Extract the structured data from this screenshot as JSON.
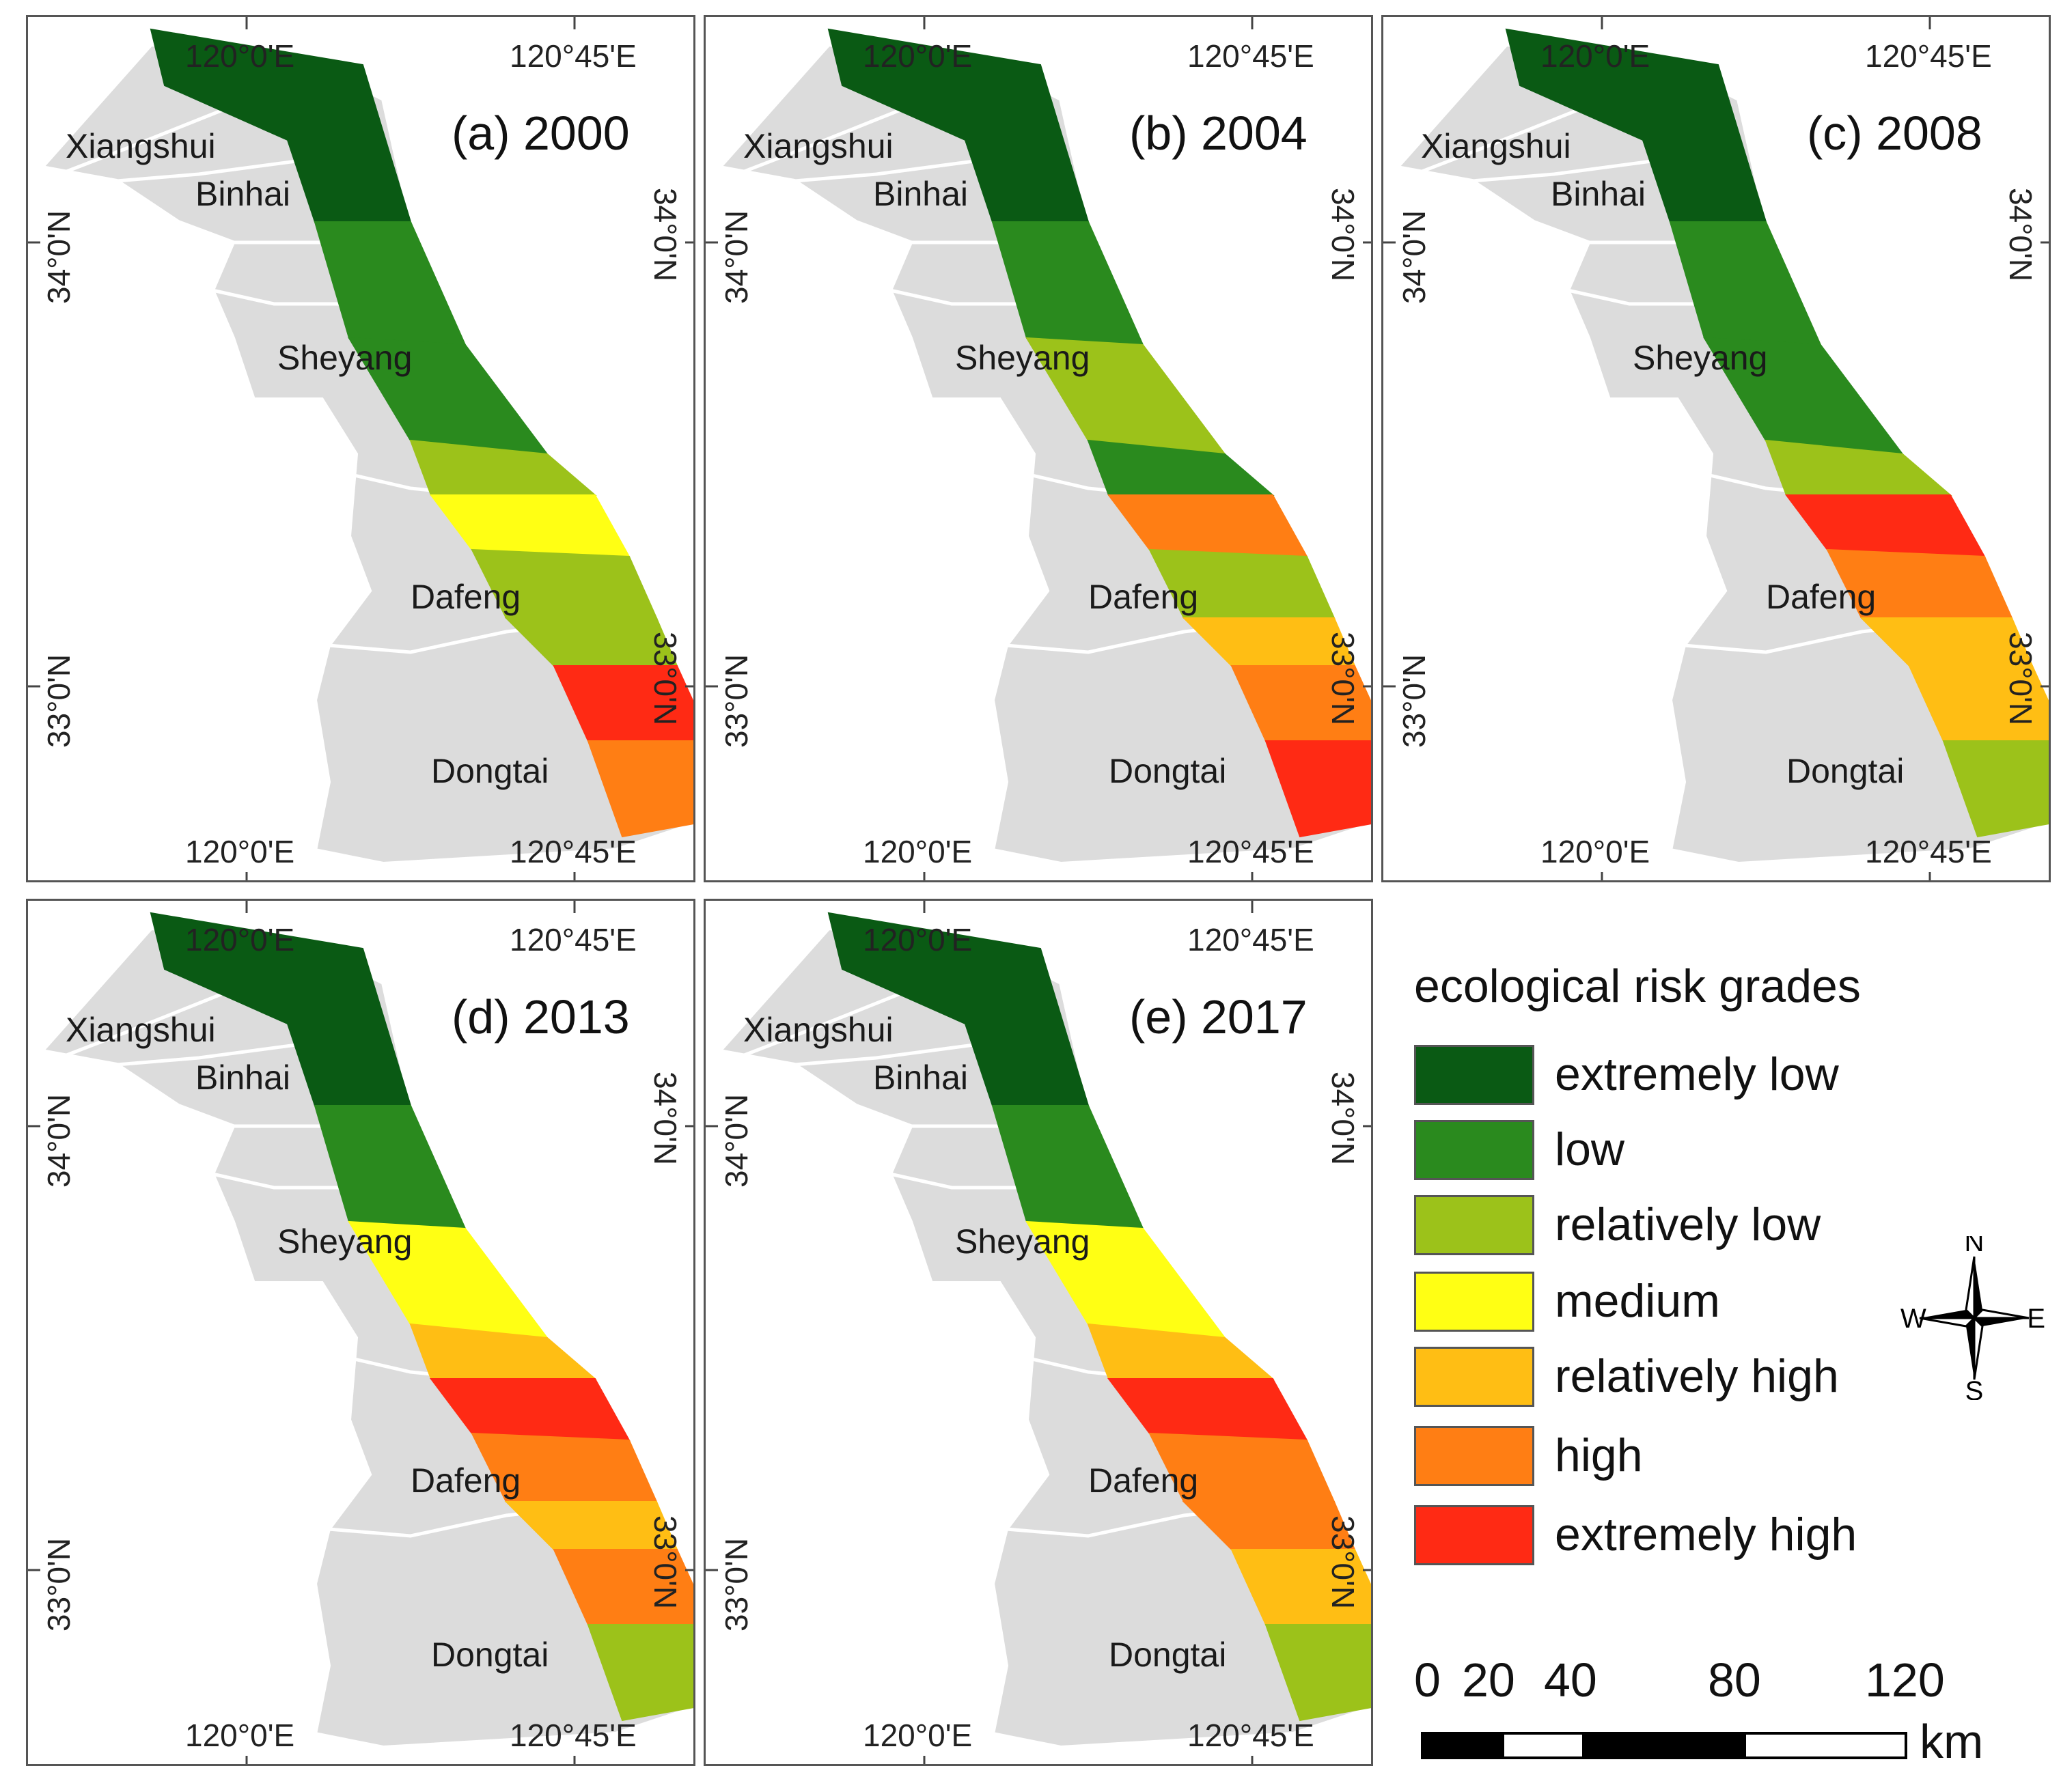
{
  "panels": [
    {
      "title": "(a) 2000"
    },
    {
      "title": "(b) 2004"
    },
    {
      "title": "(c) 2008"
    },
    {
      "title": "(d) 2013"
    },
    {
      "title": "(e) 2017"
    }
  ],
  "coords": {
    "lon_west": "120°0'E",
    "lon_east": "120°45'E",
    "lat_north": "34°0'N",
    "lat_south": "33°0'N"
  },
  "places": {
    "xiangshui": "Xiangshui",
    "binhai": "Binhai",
    "sheyang": "Sheyang",
    "dafeng": "Dafeng",
    "dongtai": "Dongtai"
  },
  "legend": {
    "title": "ecological risk grades",
    "items": [
      {
        "label": "extremely low",
        "color": "#0a5a14"
      },
      {
        "label": "low",
        "color": "#2a8a1e"
      },
      {
        "label": "relatively low",
        "color": "#9cc21a"
      },
      {
        "label": "medium",
        "color": "#ffff14"
      },
      {
        "label": "relatively high",
        "color": "#ffbe14"
      },
      {
        "label": "high",
        "color": "#ff7e14"
      },
      {
        "label": "extremely high",
        "color": "#ff2a14"
      }
    ]
  },
  "compass": {
    "n": "N",
    "s": "S",
    "e": "E",
    "w": "W"
  },
  "scale": {
    "labels": [
      "0",
      "20",
      "40",
      "80",
      "120"
    ],
    "unit": "km"
  }
}
